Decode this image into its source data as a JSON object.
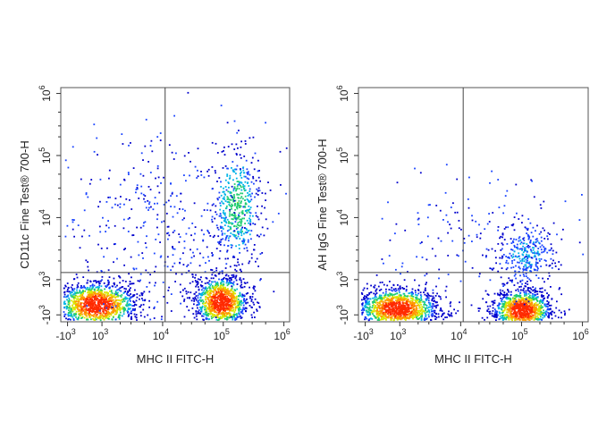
{
  "chart_data": [
    {
      "type": "scatter",
      "style": "pseudocolor-density",
      "xlabel": "MHC II FITC-H",
      "ylabel": "CD11c Fine Test® 700-H",
      "x_scale": "biexponential",
      "y_scale": "biexponential",
      "x_ticks": [
        {
          "value": -1000,
          "base": "-10",
          "exp": "3"
        },
        {
          "value": 1000,
          "base": "10",
          "exp": "3"
        },
        {
          "value": 10000,
          "base": "10",
          "exp": "4"
        },
        {
          "value": 100000,
          "base": "10",
          "exp": "5"
        },
        {
          "value": 1000000,
          "base": "10",
          "exp": "6"
        }
      ],
      "y_ticks": [
        {
          "value": -1000,
          "base": "-10",
          "exp": "3"
        },
        {
          "value": 1000,
          "base": "10",
          "exp": "3"
        },
        {
          "value": 10000,
          "base": "10",
          "exp": "4"
        },
        {
          "value": 100000,
          "base": "10",
          "exp": "5"
        },
        {
          "value": 1000000,
          "base": "10",
          "exp": "6"
        }
      ],
      "gate_x": 11000,
      "gate_y": 1300,
      "populations": [
        {
          "center_x": 800,
          "center_y": 400,
          "density": "high"
        },
        {
          "center_x": 90000,
          "center_y": 450,
          "density": "high"
        },
        {
          "center_x": 160000,
          "center_y": 15000,
          "density": "medium"
        }
      ],
      "colors": [
        "#0000cc",
        "#2266ff",
        "#00cccc",
        "#33cc33",
        "#eeee00",
        "#ff8800",
        "#ff2200"
      ]
    },
    {
      "type": "scatter",
      "style": "pseudocolor-density",
      "xlabel": "MHC II FITC-H",
      "ylabel": "AH IgG Fine Test® 700-H",
      "x_scale": "biexponential",
      "y_scale": "biexponential",
      "x_ticks": [
        {
          "value": -1000,
          "base": "-10",
          "exp": "3"
        },
        {
          "value": 1000,
          "base": "10",
          "exp": "3"
        },
        {
          "value": 10000,
          "base": "10",
          "exp": "4"
        },
        {
          "value": 100000,
          "base": "10",
          "exp": "5"
        },
        {
          "value": 1000000,
          "base": "10",
          "exp": "6"
        }
      ],
      "y_ticks": [
        {
          "value": -1000,
          "base": "-10",
          "exp": "3"
        },
        {
          "value": 1000,
          "base": "10",
          "exp": "3"
        },
        {
          "value": 10000,
          "base": "10",
          "exp": "4"
        },
        {
          "value": 100000,
          "base": "10",
          "exp": "5"
        },
        {
          "value": 1000000,
          "base": "10",
          "exp": "6"
        }
      ],
      "gate_x": 11000,
      "gate_y": 1300,
      "populations": [
        {
          "center_x": 900,
          "center_y": 350,
          "density": "high"
        },
        {
          "center_x": 100000,
          "center_y": 330,
          "density": "high"
        },
        {
          "center_x": 120000,
          "center_y": 2500,
          "density": "low"
        }
      ],
      "colors": [
        "#0000cc",
        "#2266ff",
        "#00cccc",
        "#33cc33",
        "#eeee00",
        "#ff8800",
        "#ff2200"
      ]
    }
  ]
}
